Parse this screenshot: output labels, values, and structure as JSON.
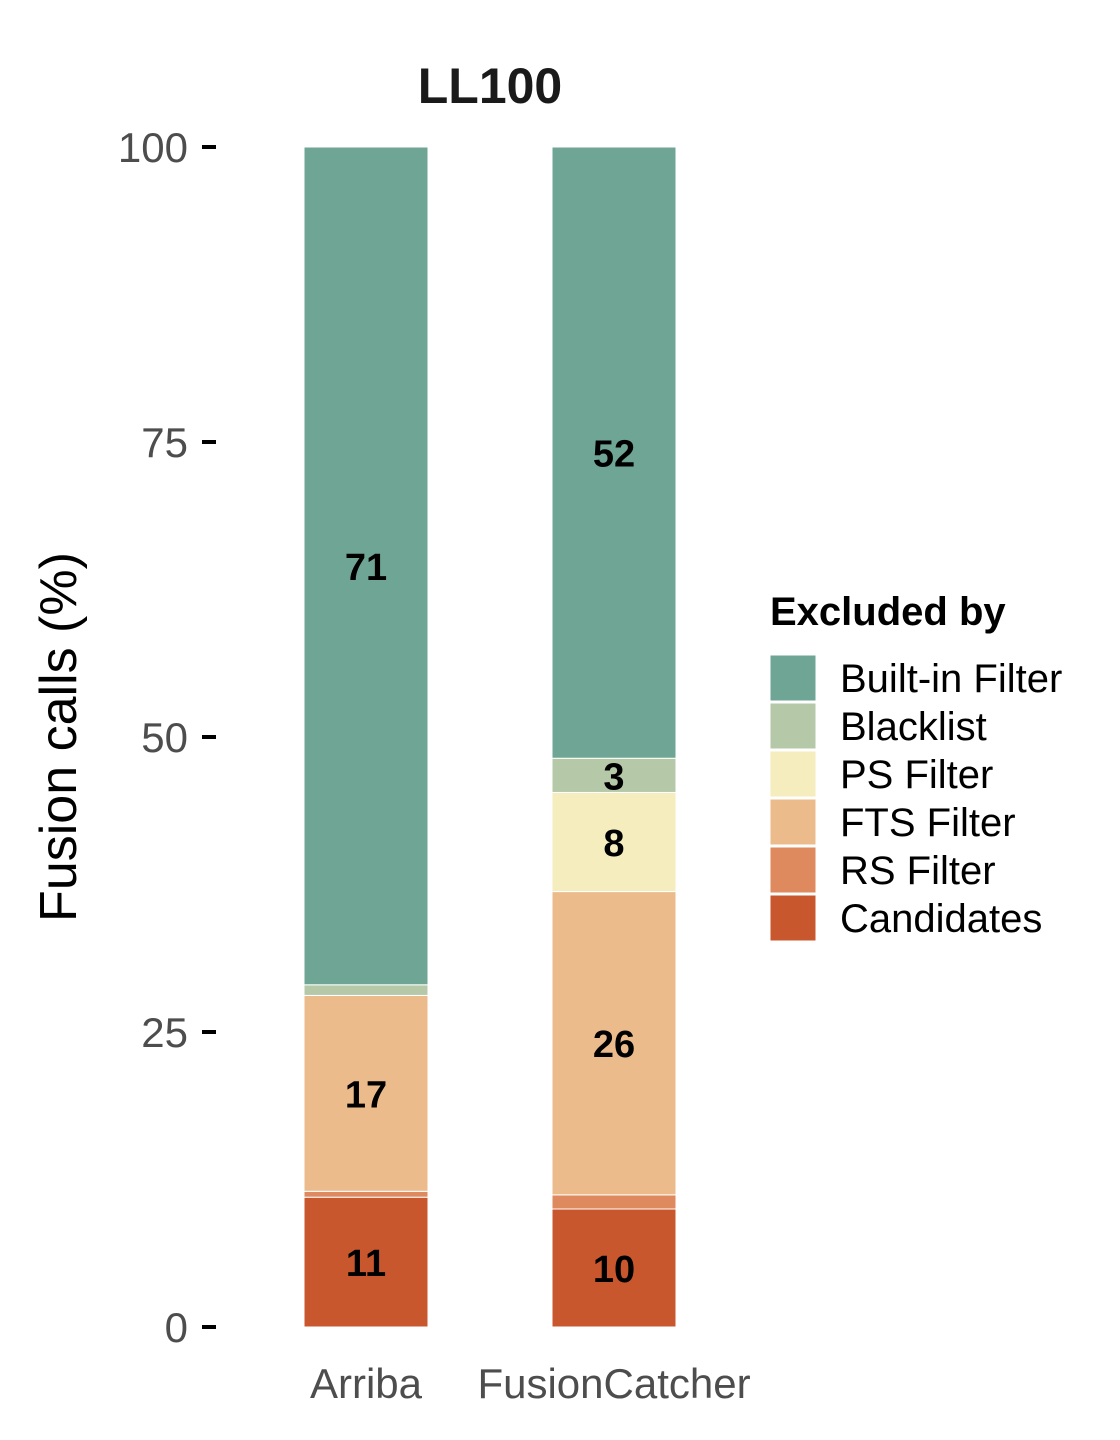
{
  "chart_data": {
    "type": "bar",
    "stacked": true,
    "title": "LL100",
    "xlabel": "",
    "ylabel": "Fusion calls (%)",
    "ylim": [
      0,
      100
    ],
    "yticks": [
      0,
      25,
      50,
      75,
      100
    ],
    "categories": [
      "Arriba",
      "FusionCatcher"
    ],
    "legend": {
      "title": "Excluded by",
      "placement": "right"
    },
    "series": [
      {
        "name": "Candidates",
        "color": "#c9572e",
        "values": [
          11,
          10
        ],
        "labels": [
          "11",
          "10"
        ]
      },
      {
        "name": "RS Filter",
        "color": "#df8a5e",
        "values": [
          0.5,
          1.2
        ],
        "labels": [
          "",
          ""
        ]
      },
      {
        "name": "FTS Filter",
        "color": "#ecbb8b",
        "values": [
          16.6,
          25.7
        ],
        "labels": [
          "17",
          "26"
        ]
      },
      {
        "name": "PS Filter",
        "color": "#f5edbe",
        "values": [
          0,
          8.4
        ],
        "labels": [
          "",
          "8"
        ]
      },
      {
        "name": "Blacklist",
        "color": "#b5c9a9",
        "values": [
          0.9,
          2.9
        ],
        "labels": [
          "",
          "3"
        ]
      },
      {
        "name": "Built-in Filter",
        "color": "#6fa594",
        "values": [
          71,
          51.8
        ],
        "labels": [
          "71",
          "52"
        ]
      }
    ],
    "legend_order": [
      "Built-in Filter",
      "Blacklist",
      "PS Filter",
      "FTS Filter",
      "RS Filter",
      "Candidates"
    ]
  }
}
